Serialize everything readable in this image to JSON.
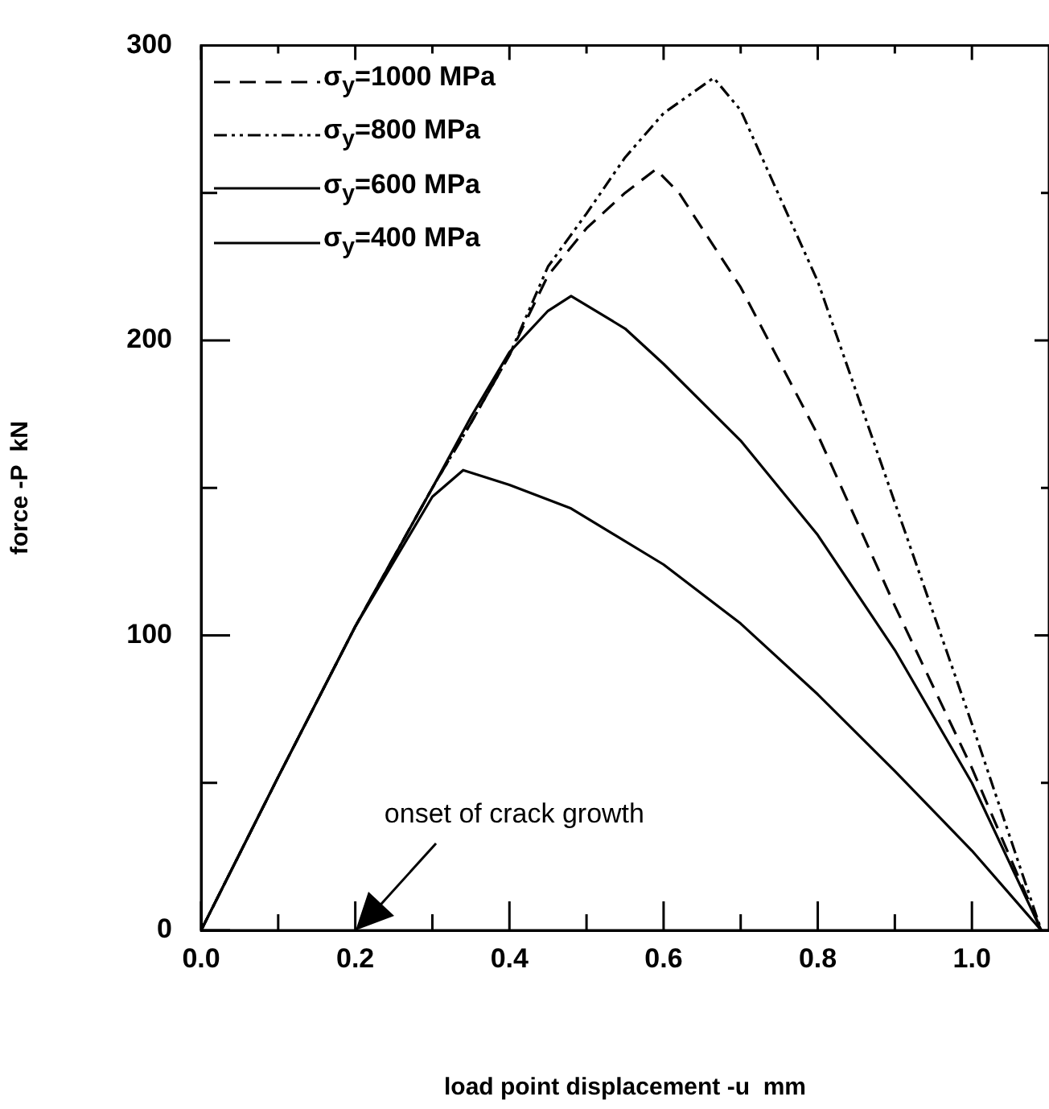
{
  "chart_data": {
    "type": "line",
    "xlabel": "load point displacement -u  mm",
    "ylabel": "force -P  kN",
    "xlim": [
      0,
      1.1
    ],
    "ylim": [
      0,
      300
    ],
    "xticks": [
      {
        "value": 0,
        "label": "0.0"
      },
      {
        "value": 0.1,
        "label": null
      },
      {
        "value": 0.2,
        "label": "0.2"
      },
      {
        "value": 0.3,
        "label": null
      },
      {
        "value": 0.4,
        "label": "0.4"
      },
      {
        "value": 0.5,
        "label": null
      },
      {
        "value": 0.6,
        "label": "0.6"
      },
      {
        "value": 0.7,
        "label": null
      },
      {
        "value": 0.8,
        "label": "0.8"
      },
      {
        "value": 0.9,
        "label": null
      },
      {
        "value": 1.0,
        "label": "1.0"
      }
    ],
    "yticks": [
      0,
      {
        "value": 50,
        "label": null
      },
      100,
      {
        "value": 150,
        "label": null
      },
      200,
      {
        "value": 250,
        "label": null
      },
      300
    ],
    "legend": "top left",
    "grid": false,
    "marker": "none",
    "annotations": [
      "onset of crack growth"
    ],
    "series": [
      {
        "name": "σ$_{y}$=1000 MPa",
        "color": "#000000",
        "line_style": "dashed",
        "x": [
          0,
          0.1,
          0.2,
          0.3,
          0.35,
          0.4,
          0.45,
          0.5,
          0.55,
          0.59,
          0.62,
          0.7,
          0.8,
          0.9,
          1.0,
          1.09
        ],
        "values": [
          0,
          52,
          103,
          150,
          172,
          195,
          222,
          238,
          250,
          258,
          250,
          218,
          168,
          110,
          55,
          0
        ]
      },
      {
        "name": "σ$_{y}$=800 MPa",
        "color": "#000000",
        "line_style": "dotted",
        "x": [
          0,
          0.1,
          0.2,
          0.3,
          0.35,
          0.4,
          0.45,
          0.5,
          0.55,
          0.6,
          0.665,
          0.7,
          0.8,
          0.9,
          1.0,
          1.09
        ],
        "values": [
          0,
          52,
          103,
          150,
          172,
          195,
          225,
          243,
          262,
          277,
          289,
          278,
          220,
          145,
          70,
          0
        ]
      },
      {
        "name": "σ$_{y}$=600 MPa",
        "color": "#000000",
        "line_style": "solid",
        "x": [
          0,
          0.1,
          0.2,
          0.3,
          0.35,
          0.4,
          0.45,
          0.48,
          0.55,
          0.6,
          0.7,
          0.8,
          0.9,
          1.0,
          1.09
        ],
        "values": [
          0,
          52,
          103,
          150,
          174,
          196,
          210,
          215,
          204,
          192,
          166,
          134,
          95,
          50,
          0
        ]
      },
      {
        "name": "σ$_{y}$=400 MPa",
        "color": "#000000",
        "line_style": "solid",
        "x": [
          0,
          0.1,
          0.2,
          0.3,
          0.34,
          0.4,
          0.48,
          0.6,
          0.7,
          0.8,
          0.9,
          1.0,
          1.09
        ],
        "values": [
          0,
          52,
          103,
          147,
          156,
          151,
          143,
          124,
          104,
          80,
          54,
          27,
          0
        ]
      }
    ]
  }
}
